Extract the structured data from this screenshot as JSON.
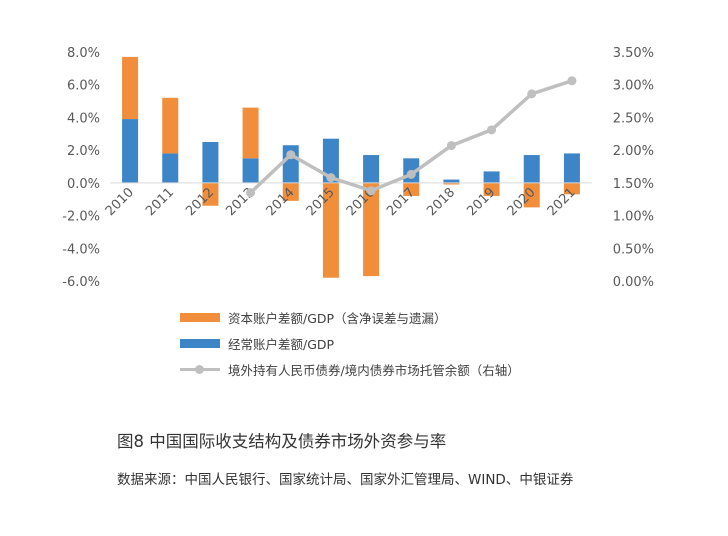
{
  "chart_data": {
    "type": "bar",
    "categories": [
      "2010",
      "2011",
      "2012",
      "2013",
      "2014",
      "2015",
      "2016",
      "2017",
      "2018",
      "2019",
      "2020",
      "2021"
    ],
    "series": [
      {
        "name": "经常账户差额/GDP",
        "kind": "stacked-bar",
        "axis": "left",
        "color": "#3d85c6",
        "values": [
          3.9,
          1.8,
          2.5,
          1.5,
          2.3,
          2.7,
          1.7,
          1.5,
          0.2,
          0.7,
          1.7,
          1.8
        ]
      },
      {
        "name": "资本账户差额/GDP（含净误差与遗漏）",
        "kind": "stacked-bar",
        "axis": "left",
        "color": "#f08e3c",
        "values": [
          3.8,
          3.4,
          -1.4,
          3.1,
          -1.1,
          -5.8,
          -5.7,
          -0.8,
          -0.1,
          -0.8,
          -1.5,
          -0.7
        ]
      },
      {
        "name": "境外持有人民币债券/境内债券市场托管余额（右轴）",
        "kind": "line",
        "axis": "right",
        "color": "#bfbfbf",
        "values": [
          null,
          null,
          null,
          1.35,
          1.93,
          1.58,
          1.38,
          1.63,
          2.07,
          2.31,
          2.86,
          3.06
        ]
      }
    ],
    "y_left": {
      "min": -6.0,
      "max": 8.0,
      "step": 2.0,
      "tick_labels": [
        "8.0%",
        "6.0%",
        "4.0%",
        "2.0%",
        "0.0%",
        "-2.0%",
        "-4.0%",
        "-6.0%"
      ]
    },
    "y_right": {
      "min": 0.0,
      "max": 3.5,
      "step": 0.5,
      "tick_labels": [
        "3.50%",
        "3.00%",
        "2.50%",
        "2.00%",
        "1.50%",
        "1.00%",
        "0.50%",
        "0.00%"
      ]
    },
    "grid": false,
    "legend_position": "bottom-left"
  },
  "legend": {
    "capital": "资本账户差额/GDP（含净误差与遗漏）",
    "current": "经常账户差额/GDP",
    "bonds": "境外持有人民币债券/境内债券市场托管余额（右轴）"
  },
  "caption": "图8  中国国际收支结构及债券市场外资参与率",
  "source": "数据来源：中国人民银行、国家统计局、国家外汇管理局、WIND、中银证券",
  "colors": {
    "capital": "#f08e3c",
    "current": "#3d85c6",
    "bonds": "#bfbfbf",
    "text": "#595959"
  }
}
